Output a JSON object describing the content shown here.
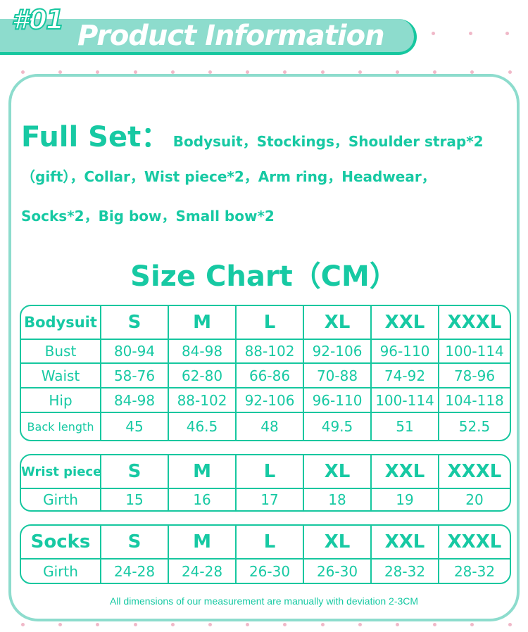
{
  "header": {
    "number": "#01",
    "title": "Product Information"
  },
  "full_set": {
    "heading": "Full Set：",
    "line1": "Bodysuit，Stockings，Shoulder strap*2",
    "line2": "（gift），Collar，Wist piece*2，Arm ring，Headwear，",
    "line3": "Socks*2，Big bow，Small bow*2"
  },
  "size_chart_title": "Size Chart（CM）",
  "sizes": [
    "S",
    "M",
    "L",
    "XL",
    "XXL",
    "XXXL"
  ],
  "bodysuit": {
    "label": "Bodysuit",
    "rows": [
      {
        "name": "Bust",
        "values": [
          "80-94",
          "84-98",
          "88-102",
          "92-106",
          "96-110",
          "100-114"
        ]
      },
      {
        "name": "Waist",
        "values": [
          "58-76",
          "62-80",
          "66-86",
          "70-88",
          "74-92",
          "78-96"
        ]
      },
      {
        "name": "Hip",
        "values": [
          "84-98",
          "88-102",
          "92-106",
          "96-110",
          "100-114",
          "104-118"
        ]
      },
      {
        "name": "Back length",
        "values": [
          "45",
          "46.5",
          "48",
          "49.5",
          "51",
          "52.5"
        ]
      }
    ]
  },
  "wrist": {
    "label": "Wrist piece",
    "rows": [
      {
        "name": "Girth",
        "values": [
          "15",
          "16",
          "17",
          "18",
          "19",
          "20"
        ]
      }
    ]
  },
  "socks": {
    "label": "Socks",
    "rows": [
      {
        "name": "Girth",
        "values": [
          "24-28",
          "24-28",
          "26-30",
          "26-30",
          "28-32",
          "28-32"
        ]
      }
    ]
  },
  "note": "All dimensions of our measurement are manually with deviation 2-3CM",
  "colors": {
    "accent": "#17c9a3",
    "banner": "#8ddccd",
    "dots": "#f0b8c8"
  }
}
